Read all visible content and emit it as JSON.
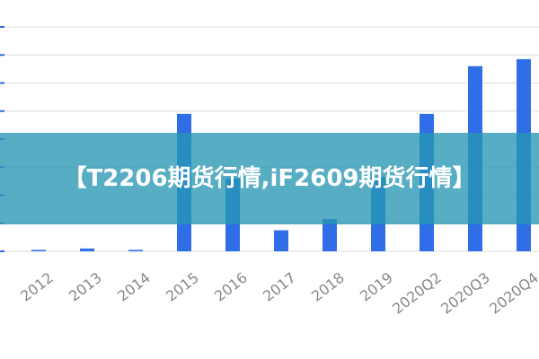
{
  "chart_data": {
    "type": "bar",
    "categories": [
      "2012",
      "2013",
      "2014",
      "2015",
      "2016",
      "2017",
      "2018",
      "2019",
      "2020Q2",
      "2020Q3",
      "2020Q4"
    ],
    "values": [
      0.05,
      0.1,
      0.05,
      4.9,
      2.6,
      0.75,
      1.15,
      2.65,
      4.9,
      6.6,
      6.85
    ],
    "color": "#2f6ee6",
    "ylim": [
      0,
      8
    ],
    "yticks": [
      0,
      1,
      2,
      3,
      4,
      5,
      6,
      7,
      8
    ],
    "grid": true
  },
  "overlay": {
    "text": "【T2206期货行情,iF2609期货行情】"
  }
}
